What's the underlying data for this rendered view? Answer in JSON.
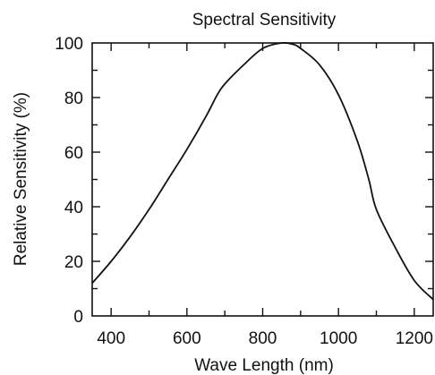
{
  "chart_data": {
    "type": "line",
    "title": "Spectral Sensitivity",
    "xlabel": "Wave Length (nm)",
    "ylabel": "Relative Sensitivity (%)",
    "xlim": [
      350,
      1250
    ],
    "ylim": [
      0,
      100
    ],
    "x_ticks": [
      400,
      600,
      800,
      1000,
      1200
    ],
    "y_ticks": [
      0,
      20,
      40,
      60,
      80,
      100
    ],
    "grid": false,
    "series": [
      {
        "name": "",
        "x": [
          350,
          400,
          450,
          500,
          550,
          600,
          650,
          680,
          700,
          750,
          800,
          850,
          880,
          900,
          950,
          1000,
          1050,
          1080,
          1100,
          1150,
          1200,
          1250
        ],
        "y": [
          12,
          20,
          29,
          39,
          50,
          61,
          73,
          81,
          85,
          92,
          98,
          100,
          99.5,
          98,
          92,
          81,
          64,
          50,
          39,
          25,
          13,
          6
        ]
      }
    ]
  },
  "colors": {
    "line": "#111111",
    "axis": "#111111"
  }
}
